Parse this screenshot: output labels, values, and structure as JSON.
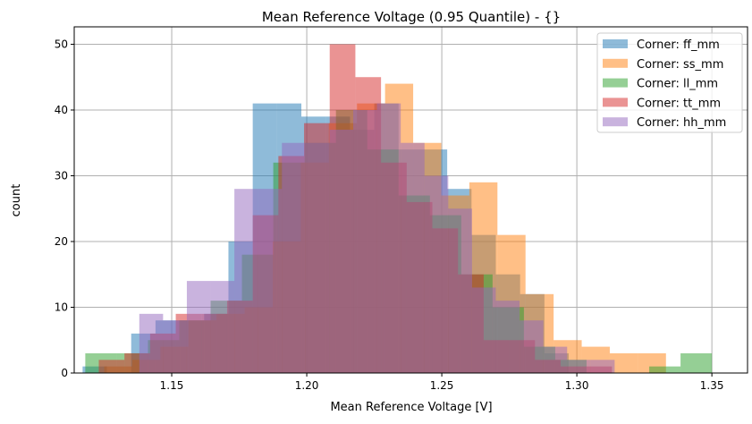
{
  "chart_data": {
    "type": "histogram",
    "title": "Mean Reference Voltage (0.95 Quantile) - {}",
    "xlabel": "Mean Reference Voltage [V]",
    "ylabel": "count",
    "xlim": [
      1.1139,
      1.3632
    ],
    "ylim": [
      0,
      52.65
    ],
    "xticks": [
      "1.15",
      "1.20",
      "1.25",
      "1.30",
      "1.35"
    ],
    "yticks": [
      "0",
      "10",
      "20",
      "30",
      "40",
      "50"
    ],
    "grid": true,
    "legend_position": "top-right",
    "alpha": 0.5,
    "series": [
      {
        "name": "Corner: ff_mm",
        "color": "#1f77b4",
        "bin_start": 1.117,
        "bin_width": 0.009,
        "counts": [
          1,
          0,
          6,
          8,
          8,
          9,
          20,
          41,
          41,
          39,
          39,
          37,
          41,
          34,
          34,
          28,
          21,
          15,
          12,
          3
        ]
      },
      {
        "name": "Corner: ss_mm",
        "color": "#ff7f0e",
        "bin_start": 1.125,
        "bin_width": 0.0104,
        "counts": [
          1,
          2,
          4,
          8,
          9,
          10,
          20,
          32,
          38,
          41,
          44,
          35,
          27,
          29,
          21,
          12,
          5,
          4,
          3,
          3
        ]
      },
      {
        "name": "Corner: ll_mm",
        "color": "#2ca02c",
        "bin_start": 1.118,
        "bin_width": 0.0116,
        "counts": [
          3,
          3,
          5,
          8,
          11,
          18,
          32,
          35,
          40,
          34,
          27,
          24,
          15,
          10,
          4,
          2,
          0,
          0,
          1,
          3
        ]
      },
      {
        "name": "Corner: tt_mm",
        "color": "#d62728",
        "bin_start": 1.123,
        "bin_width": 0.0095,
        "counts": [
          2,
          3,
          6,
          9,
          9,
          11,
          24,
          33,
          38,
          50,
          45,
          32,
          26,
          22,
          15,
          5,
          5,
          2,
          1,
          1
        ]
      },
      {
        "name": "Corner: hh_mm",
        "color": "#9467bd",
        "bin_start": 1.138,
        "bin_width": 0.0088,
        "counts": [
          9,
          8,
          14,
          14,
          28,
          28,
          35,
          35,
          37,
          40,
          41,
          35,
          30,
          25,
          13,
          11,
          8,
          4,
          2,
          2
        ]
      }
    ]
  }
}
